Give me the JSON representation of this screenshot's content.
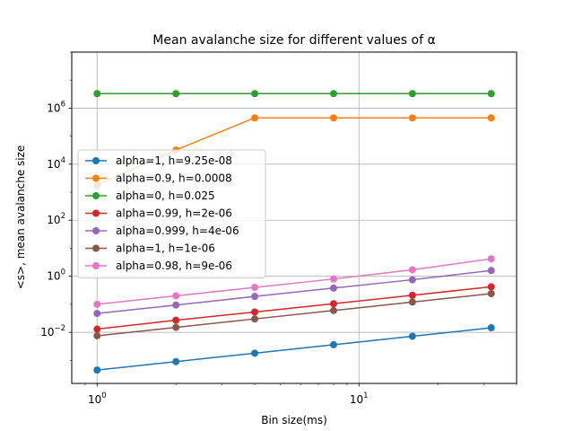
{
  "chart_data": {
    "type": "line",
    "title": "Mean avalanche size for different values of α",
    "xlabel": "Bin size(ms)",
    "ylabel": "<s>, mean avalanche size",
    "xscale": "log",
    "yscale": "log",
    "xlim": [
      0.8,
      40
    ],
    "ylim": [
      0.00015,
      100000000
    ],
    "grid": true,
    "legend_position": "center-left",
    "x": [
      1,
      2,
      4,
      8,
      16,
      32
    ],
    "x_ticks": [
      {
        "value": 1,
        "base": "10",
        "exp": "0"
      },
      {
        "value": 10,
        "base": "10",
        "exp": "1"
      }
    ],
    "y_ticks": [
      {
        "value": 0.01,
        "base": "10",
        "exp": "−2"
      },
      {
        "value": 1,
        "base": "10",
        "exp": "0"
      },
      {
        "value": 100,
        "base": "10",
        "exp": "2"
      },
      {
        "value": 10000,
        "base": "10",
        "exp": "4"
      },
      {
        "value": 1000000,
        "base": "10",
        "exp": "6"
      }
    ],
    "series": [
      {
        "name": "alpha=1, h=9.25e-08",
        "color": "#1f77b4",
        "values": [
          0.00045,
          0.0009,
          0.0018,
          0.0036,
          0.0072,
          0.0145
        ]
      },
      {
        "name": "alpha=0.9, h=0.0008",
        "color": "#ff7f0e",
        "values": [
          1800,
          32000,
          450000,
          450000,
          450000,
          450000
        ]
      },
      {
        "name": "alpha=0, h=0.025",
        "color": "#2ca02c",
        "values": [
          3300000,
          3300000,
          3300000,
          3300000,
          3300000,
          3300000
        ]
      },
      {
        "name": "alpha=0.99, h=2e-06",
        "color": "#d62728",
        "values": [
          0.013,
          0.027,
          0.053,
          0.105,
          0.21,
          0.42
        ]
      },
      {
        "name": "alpha=0.999, h=4e-06",
        "color": "#9467bd",
        "values": [
          0.047,
          0.094,
          0.19,
          0.38,
          0.75,
          1.6
        ]
      },
      {
        "name": "alpha=1, h=1e-06",
        "color": "#8c564b",
        "values": [
          0.0075,
          0.015,
          0.03,
          0.06,
          0.12,
          0.24
        ]
      },
      {
        "name": "alpha=0.98, h=9e-06",
        "color": "#e377c2",
        "values": [
          0.1,
          0.2,
          0.4,
          0.8,
          1.7,
          4.2
        ]
      }
    ]
  }
}
